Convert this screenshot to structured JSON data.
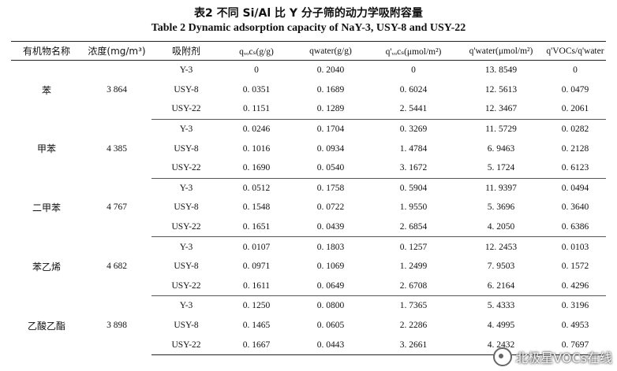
{
  "caption": {
    "zh": "表2   不同 Si/Al 比 Y 分子筛的动力学吸附容量",
    "en": "Table 2   Dynamic adsorption capacity of NaY-3, USY-8 and USY-22"
  },
  "headers": {
    "compound": "有机物名称",
    "concentration": "浓度(mg/m³)",
    "adsorbent": "吸附剂",
    "q_voc": "qᵥₒcₛ(g/g)",
    "q_water": "qwater(g/g)",
    "qp_voc": "q'ᵥₒcₛ(μmol/m²)",
    "qp_water": "q'water(μmol/m²)",
    "ratio": "q'VOCs/q'water"
  },
  "groups": [
    {
      "compound": "苯",
      "concentration": "3 864",
      "rows": [
        {
          "adsorbent": "Y-3",
          "q_voc": "0",
          "q_water": "0. 2040",
          "qp_voc": "0",
          "qp_water": "13. 8549",
          "ratio": "0"
        },
        {
          "adsorbent": "USY-8",
          "q_voc": "0. 0351",
          "q_water": "0. 1689",
          "qp_voc": "0. 6024",
          "qp_water": "12. 5613",
          "ratio": "0. 0479"
        },
        {
          "adsorbent": "USY-22",
          "q_voc": "0. 1151",
          "q_water": "0. 1289",
          "qp_voc": "2. 5441",
          "qp_water": "12. 3467",
          "ratio": "0. 2061"
        }
      ]
    },
    {
      "compound": "甲苯",
      "concentration": "4 385",
      "rows": [
        {
          "adsorbent": "Y-3",
          "q_voc": "0. 0246",
          "q_water": "0. 1704",
          "qp_voc": "0. 3269",
          "qp_water": "11. 5729",
          "ratio": "0. 0282"
        },
        {
          "adsorbent": "USY-8",
          "q_voc": "0. 1016",
          "q_water": "0. 0934",
          "qp_voc": "1. 4784",
          "qp_water": "6. 9463",
          "ratio": "0. 2128"
        },
        {
          "adsorbent": "USY-22",
          "q_voc": "0. 1690",
          "q_water": "0. 0540",
          "qp_voc": "3. 1672",
          "qp_water": "5. 1724",
          "ratio": "0. 6123"
        }
      ]
    },
    {
      "compound": "二甲苯",
      "concentration": "4 767",
      "rows": [
        {
          "adsorbent": "Y-3",
          "q_voc": "0. 0512",
          "q_water": "0. 1758",
          "qp_voc": "0. 5904",
          "qp_water": "11. 9397",
          "ratio": "0. 0494"
        },
        {
          "adsorbent": "USY-8",
          "q_voc": "0. 1548",
          "q_water": "0. 0722",
          "qp_voc": "1. 9550",
          "qp_water": "5. 3696",
          "ratio": "0. 3640"
        },
        {
          "adsorbent": "USY-22",
          "q_voc": "0. 1651",
          "q_water": "0. 0439",
          "qp_voc": "2. 6854",
          "qp_water": "4. 2050",
          "ratio": "0. 6386"
        }
      ]
    },
    {
      "compound": "苯乙烯",
      "concentration": "4 682",
      "rows": [
        {
          "adsorbent": "Y-3",
          "q_voc": "0. 0107",
          "q_water": "0. 1803",
          "qp_voc": "0. 1257",
          "qp_water": "12. 2453",
          "ratio": "0. 0103"
        },
        {
          "adsorbent": "USY-8",
          "q_voc": "0. 0971",
          "q_water": "0. 1069",
          "qp_voc": "1. 2499",
          "qp_water": "7. 9503",
          "ratio": "0. 1572"
        },
        {
          "adsorbent": "USY-22",
          "q_voc": "0. 1611",
          "q_water": "0. 0649",
          "qp_voc": "2. 6708",
          "qp_water": "6. 2164",
          "ratio": "0. 4296"
        }
      ]
    },
    {
      "compound": "乙酸乙酯",
      "concentration": "3 898",
      "rows": [
        {
          "adsorbent": "Y-3",
          "q_voc": "0. 1250",
          "q_water": "0. 0800",
          "qp_voc": "1. 7365",
          "qp_water": "5. 4333",
          "ratio": "0. 3196"
        },
        {
          "adsorbent": "USY-8",
          "q_voc": "0. 1465",
          "q_water": "0. 0605",
          "qp_voc": "2. 2286",
          "qp_water": "4. 4995",
          "ratio": "0. 4953"
        },
        {
          "adsorbent": "USY-22",
          "q_voc": "0. 1667",
          "q_water": "0. 0443",
          "qp_voc": "3. 2661",
          "qp_water": "4. 2432",
          "ratio": "0. 7697"
        }
      ]
    }
  ],
  "watermark": {
    "text": "北极星VOCs在线",
    "icon": "wechat-bubble-icon"
  }
}
